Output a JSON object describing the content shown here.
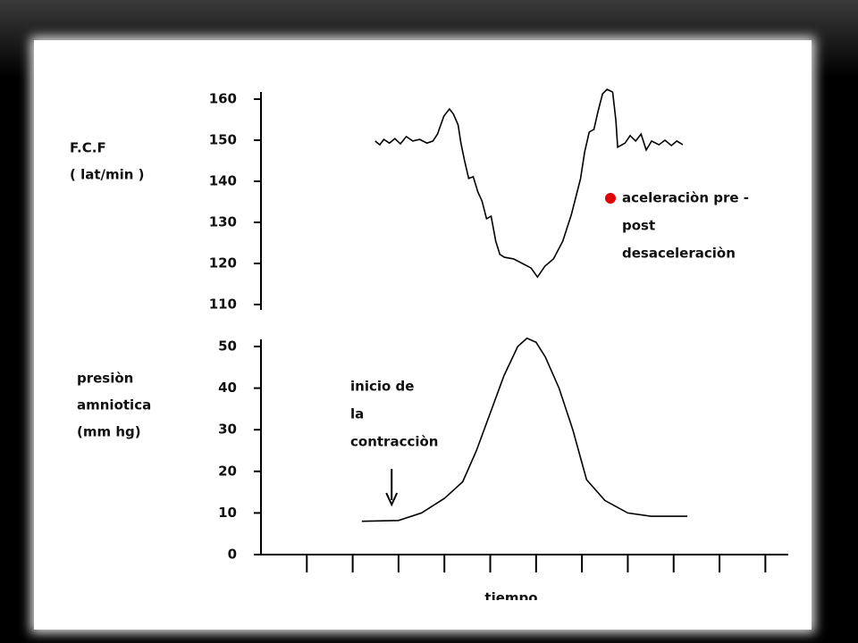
{
  "chart_data": [
    {
      "type": "line",
      "y_label": [
        "F.C.F",
        "( lat/min )"
      ],
      "xlim": [
        0,
        11.5
      ],
      "ylim": [
        110,
        160
      ],
      "yticks": [
        110,
        120,
        130,
        140,
        150,
        160
      ],
      "legend": {
        "color": "#e00000",
        "lines": [
          "aceleraciòn pre -",
          "post",
          "desaceleraciòn"
        ]
      },
      "series": [
        {
          "color": "#000000",
          "x": [
            2.49,
            2.59,
            2.68,
            2.8,
            2.92,
            3.04,
            3.17,
            3.31,
            3.46,
            3.62,
            3.75,
            3.85,
            3.99,
            4.11,
            4.2,
            4.3,
            4.36,
            4.44,
            4.53,
            4.63,
            4.73,
            4.82,
            4.92,
            5.02,
            5.12,
            5.21,
            5.31,
            5.51,
            5.7,
            5.89,
            6.03,
            6.19,
            6.38,
            6.58,
            6.77,
            6.97,
            7.06,
            7.16,
            7.26,
            7.35,
            7.45,
            7.55,
            7.67,
            7.74,
            7.78,
            7.94,
            8.05,
            8.17,
            8.29,
            8.4,
            8.52,
            8.68,
            8.81,
            8.95,
            9.07,
            9.2
          ],
          "values": [
            149.8,
            148.9,
            150.2,
            149.3,
            150.4,
            149.1,
            150.9,
            149.8,
            150.2,
            149.3,
            149.8,
            151.5,
            155.9,
            157.6,
            156.3,
            153.7,
            149.3,
            145.0,
            140.7,
            141.1,
            137.4,
            135.2,
            130.9,
            131.5,
            125.4,
            122.2,
            121.5,
            121.1,
            120.0,
            118.9,
            116.7,
            119.3,
            121.1,
            125.4,
            131.9,
            140.7,
            147.2,
            152.0,
            152.6,
            157.0,
            161.3,
            162.4,
            161.7,
            154.8,
            148.3,
            149.3,
            151.1,
            149.8,
            151.5,
            147.6,
            149.8,
            148.9,
            150.0,
            148.7,
            149.8,
            148.9
          ]
        }
      ]
    },
    {
      "type": "line",
      "y_label": [
        "presiòn",
        "amniotica",
        "(mm hg)"
      ],
      "x_label": "tiempo",
      "xlim": [
        0,
        11.5
      ],
      "xticks": [
        1,
        2,
        3,
        4,
        5,
        6,
        7,
        8,
        9,
        10,
        11
      ],
      "ylim": [
        0,
        50
      ],
      "yticks": [
        0,
        10,
        20,
        30,
        40,
        50
      ],
      "annotation": {
        "lines": [
          "inicio de",
          "la",
          "contracciòn"
        ],
        "x": 2.85
      },
      "series": [
        {
          "color": "#000000",
          "x": [
            2.2,
            3.0,
            3.5,
            4.0,
            4.4,
            4.7,
            5.0,
            5.3,
            5.6,
            5.8,
            6.0,
            6.2,
            6.5,
            6.8,
            7.1,
            7.5,
            8.0,
            8.5,
            9.3
          ],
          "values": [
            8,
            8.2,
            10,
            13.5,
            17.5,
            25,
            34,
            43,
            50,
            52,
            51,
            47.5,
            40,
            30,
            18,
            13,
            10,
            9.2,
            9.2
          ]
        }
      ]
    }
  ]
}
